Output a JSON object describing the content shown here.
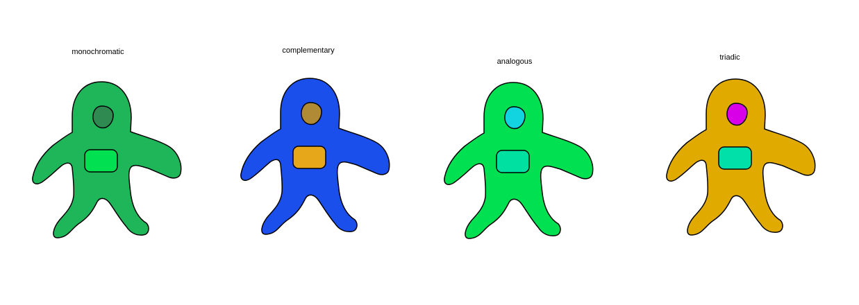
{
  "figures": [
    {
      "label": "monochromatic",
      "colors": {
        "body": "#1fb65a",
        "head": "#2e8a50",
        "chest": "#00e050"
      }
    },
    {
      "label": "complementary",
      "colors": {
        "body": "#1a4fec",
        "head": "#b08a35",
        "chest": "#e6a81a"
      }
    },
    {
      "label": "analogous",
      "colors": {
        "body": "#00e050",
        "head": "#12d3e0",
        "chest": "#00e0a0"
      }
    },
    {
      "label": "triadic",
      "colors": {
        "body": "#e0aa00",
        "head": "#d800e6",
        "chest": "#00e0a8"
      }
    }
  ]
}
